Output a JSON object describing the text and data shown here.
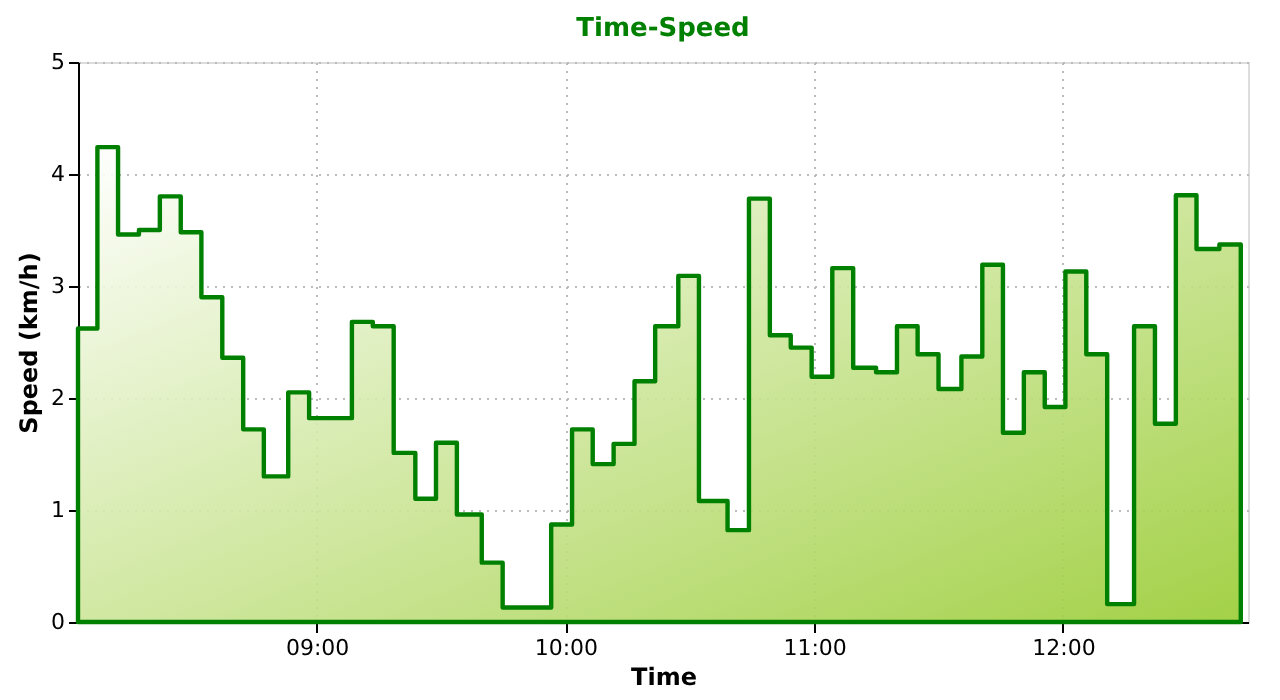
{
  "chart_data": {
    "type": "step",
    "title": "Time-Speed",
    "xlabel": "Time",
    "ylabel": "Speed (km/h)",
    "x": [
      8.041,
      8.119,
      8.202,
      8.286,
      8.37,
      8.454,
      8.537,
      8.621,
      8.705,
      8.788,
      8.886,
      8.97,
      9.142,
      9.226,
      9.31,
      9.397,
      9.48,
      9.564,
      9.664,
      9.748,
      9.943,
      10.027,
      10.11,
      10.194,
      10.278,
      10.361,
      10.454,
      10.537,
      10.652,
      10.738,
      10.822,
      10.906,
      10.99,
      11.073,
      11.157,
      11.249,
      11.333,
      11.416,
      11.5,
      11.592,
      11.676,
      11.759,
      11.843,
      11.927,
      12.01,
      12.094,
      12.178,
      12.286,
      12.37,
      12.454,
      12.537,
      12.629,
      12.715
    ],
    "series": [
      {
        "type": "area",
        "color": "#008000",
        "values": [
          2.62,
          4.24,
          3.46,
          3.5,
          3.8,
          3.48,
          2.9,
          2.36,
          1.72,
          1.3,
          2.05,
          1.82,
          2.68,
          2.64,
          1.51,
          1.1,
          1.6,
          0.96,
          0.53,
          0.13,
          0.87,
          1.72,
          1.41,
          1.59,
          2.15,
          2.64,
          3.09,
          1.08,
          0.82,
          3.78,
          2.56,
          2.45,
          2.19,
          3.16,
          2.27,
          2.23,
          2.64,
          2.39,
          2.08,
          2.37,
          3.19,
          1.69,
          2.23,
          1.92,
          3.13,
          2.39,
          0.16,
          2.64,
          1.77,
          3.81,
          3.33,
          3.37,
          3.37
        ]
      }
    ],
    "xlim": [
      8.041,
      12.744
    ],
    "xticks": [
      {
        "value": 9,
        "label": "09:00"
      },
      {
        "value": 10,
        "label": "10:00"
      },
      {
        "value": 11,
        "label": "11:00"
      },
      {
        "value": 12,
        "label": "12:00"
      }
    ],
    "ylim": [
      0,
      5
    ],
    "yticks": [
      0,
      1,
      2,
      3,
      4,
      5
    ],
    "grid": true
  }
}
